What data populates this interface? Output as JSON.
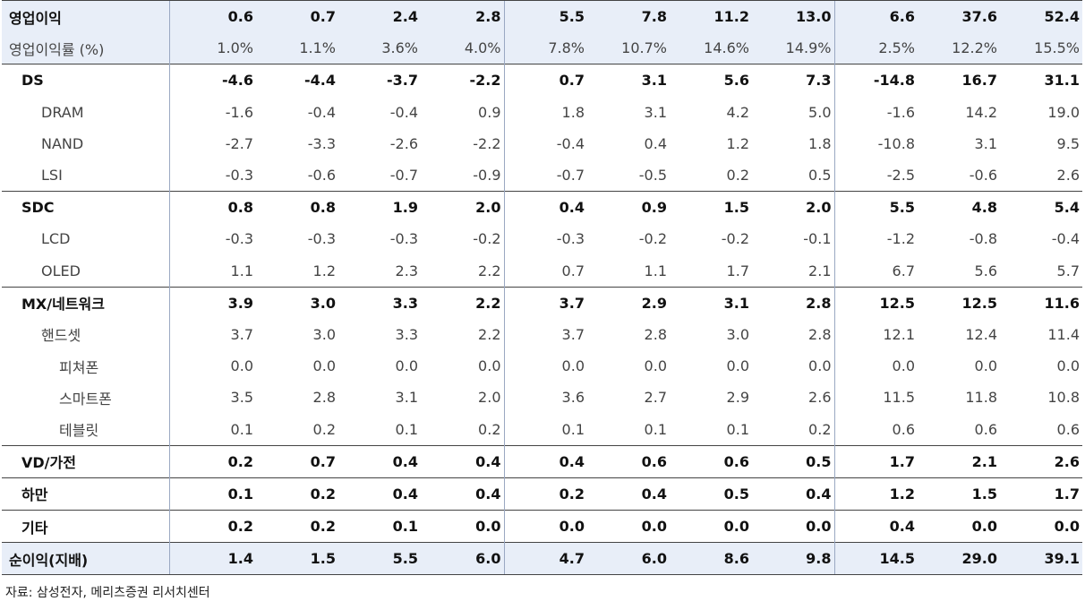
{
  "rows": [
    {
      "label": "영업이익",
      "values": [
        "0.6",
        "0.7",
        "2.4",
        "2.8",
        "5.5",
        "7.8",
        "11.2",
        "13.0",
        "6.6",
        "37.6",
        "52.4"
      ]
    },
    {
      "label": "영업이익률 (%)",
      "values": [
        "1.0%",
        "1.1%",
        "3.6%",
        "4.0%",
        "7.8%",
        "10.7%",
        "14.6%",
        "14.9%",
        "2.5%",
        "12.2%",
        "15.5%"
      ]
    },
    {
      "label": "DS",
      "values": [
        "-4.6",
        "-4.4",
        "-3.7",
        "-2.2",
        "0.7",
        "3.1",
        "5.6",
        "7.3",
        "-14.8",
        "16.7",
        "31.1"
      ]
    },
    {
      "label": "DRAM",
      "values": [
        "-1.6",
        "-0.4",
        "-0.4",
        "0.9",
        "1.8",
        "3.1",
        "4.2",
        "5.0",
        "-1.6",
        "14.2",
        "19.0"
      ]
    },
    {
      "label": "NAND",
      "values": [
        "-2.7",
        "-3.3",
        "-2.6",
        "-2.2",
        "-0.4",
        "0.4",
        "1.2",
        "1.8",
        "-10.8",
        "3.1",
        "9.5"
      ]
    },
    {
      "label": "LSI",
      "values": [
        "-0.3",
        "-0.6",
        "-0.7",
        "-0.9",
        "-0.7",
        "-0.5",
        "0.2",
        "0.5",
        "-2.5",
        "-0.6",
        "2.6"
      ]
    },
    {
      "label": "SDC",
      "values": [
        "0.8",
        "0.8",
        "1.9",
        "2.0",
        "0.4",
        "0.9",
        "1.5",
        "2.0",
        "5.5",
        "4.8",
        "5.4"
      ]
    },
    {
      "label": "LCD",
      "values": [
        "-0.3",
        "-0.3",
        "-0.3",
        "-0.2",
        "-0.3",
        "-0.2",
        "-0.2",
        "-0.1",
        "-1.2",
        "-0.8",
        "-0.4"
      ]
    },
    {
      "label": "OLED",
      "values": [
        "1.1",
        "1.2",
        "2.3",
        "2.2",
        "0.7",
        "1.1",
        "1.7",
        "2.1",
        "6.7",
        "5.6",
        "5.7"
      ]
    },
    {
      "label": "MX/네트워크",
      "values": [
        "3.9",
        "3.0",
        "3.3",
        "2.2",
        "3.7",
        "2.9",
        "3.1",
        "2.8",
        "12.5",
        "12.5",
        "11.6"
      ]
    },
    {
      "label": "핸드셋",
      "values": [
        "3.7",
        "3.0",
        "3.3",
        "2.2",
        "3.7",
        "2.8",
        "3.0",
        "2.8",
        "12.1",
        "12.4",
        "11.4"
      ]
    },
    {
      "label": "피쳐폰",
      "values": [
        "0.0",
        "0.0",
        "0.0",
        "0.0",
        "0.0",
        "0.0",
        "0.0",
        "0.0",
        "0.0",
        "0.0",
        "0.0"
      ]
    },
    {
      "label": "스마트폰",
      "values": [
        "3.5",
        "2.8",
        "3.1",
        "2.0",
        "3.6",
        "2.7",
        "2.9",
        "2.6",
        "11.5",
        "11.8",
        "10.8"
      ]
    },
    {
      "label": "테블릿",
      "values": [
        "0.1",
        "0.2",
        "0.1",
        "0.2",
        "0.1",
        "0.1",
        "0.1",
        "0.2",
        "0.6",
        "0.6",
        "0.6"
      ]
    },
    {
      "label": "VD/가전",
      "values": [
        "0.2",
        "0.7",
        "0.4",
        "0.4",
        "0.4",
        "0.6",
        "0.6",
        "0.5",
        "1.7",
        "2.1",
        "2.6"
      ]
    },
    {
      "label": "하만",
      "values": [
        "0.1",
        "0.2",
        "0.4",
        "0.4",
        "0.2",
        "0.4",
        "0.5",
        "0.4",
        "1.2",
        "1.5",
        "1.7"
      ]
    },
    {
      "label": "기타",
      "values": [
        "0.2",
        "0.2",
        "0.1",
        "0.0",
        "0.0",
        "0.0",
        "0.0",
        "0.0",
        "0.4",
        "0.0",
        "0.0"
      ]
    },
    {
      "label": "순이익(지배)",
      "values": [
        "1.4",
        "1.5",
        "5.5",
        "6.0",
        "4.7",
        "6.0",
        "8.6",
        "9.8",
        "14.5",
        "29.0",
        "39.1"
      ]
    }
  ],
  "source_note": "자료: 삼성전자, 메리츠증권 리서치센터",
  "colors": {
    "header_shade": "#e8eef8",
    "rule": "#444444",
    "separator": "#9aa8c2"
  }
}
